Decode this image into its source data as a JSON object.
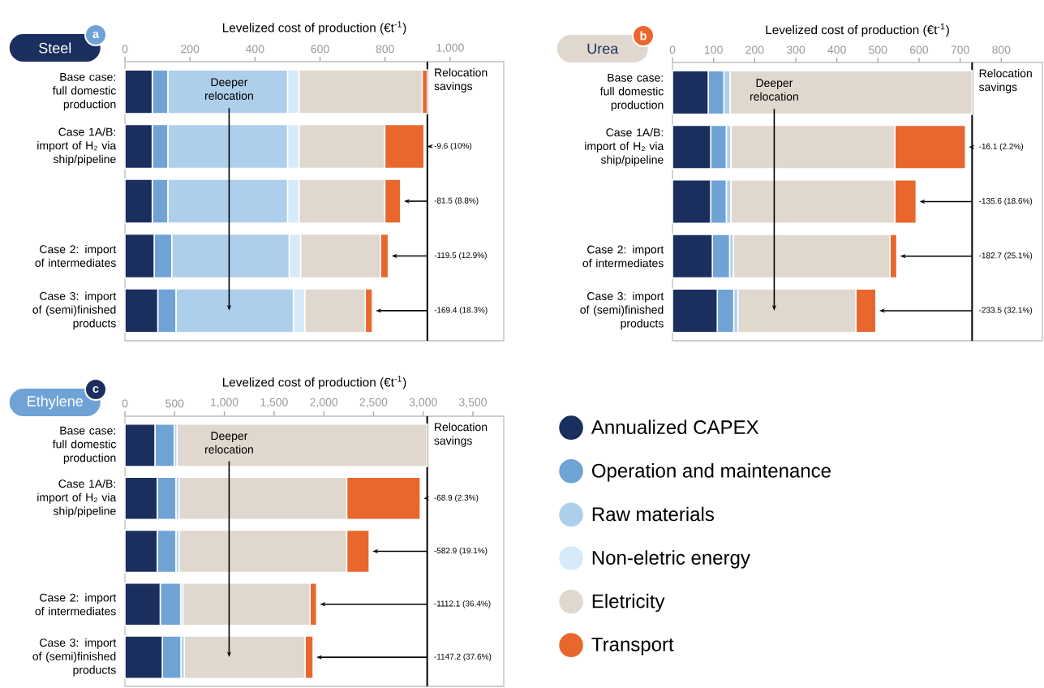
{
  "chart_data": [
    {
      "type": "bar",
      "orientation": "horizontal",
      "stacked": true,
      "title": "Steel",
      "subtitle": "a",
      "xlabel": "Levelized cost of production (€t$^{-1}$)",
      "categories": [
        "Base case: full domestic production",
        "Case 1A/B: import of H₂ via ship/pipeline",
        null,
        "Case 2: import of intermediates",
        "Case 3: import of (semi)finished products"
      ],
      "series": [
        {
          "name": "Annualized CAPEX",
          "color": "#1b2f5e",
          "values": [
            84,
            84,
            84,
            90,
            101
          ]
        },
        {
          "name": "Operation and maintenance",
          "color": "#6fa3d6",
          "values": [
            48,
            48,
            48,
            54,
            56
          ]
        },
        {
          "name": "Raw materials",
          "color": "#aecfec",
          "values": [
            368,
            368,
            368,
            361,
            361
          ]
        },
        {
          "name": "Non-eletric energy",
          "color": "#d6eafa",
          "values": [
            35,
            35,
            35,
            35,
            35
          ]
        },
        {
          "name": "Eletricity",
          "color": "#e0d8ce",
          "values": [
            379,
            264,
            264,
            246,
            186
          ]
        },
        {
          "name": "Transport",
          "color": "#e9672d",
          "values": [
            16,
            121,
            49,
            24,
            22
          ]
        }
      ],
      "xlim": [
        0,
        1165
      ],
      "xticks": [
        0,
        200,
        400,
        600,
        800,
        {
          "value": 1000,
          "label": "1,000"
        }
      ],
      "ref_lines": [
        {
          "axis": "x",
          "value": 930,
          "label": "Relocation savings",
          "color": "#000000"
        }
      ],
      "annotations": [
        "Deeper relocation",
        "-9.6 (10%)",
        "-81.5 (8.8%)",
        "-119.5 (12.9%)",
        "-169.4 (18.3%)"
      ],
      "legend": "bottom right"
    },
    {
      "type": "bar",
      "orientation": "horizontal",
      "stacked": true,
      "title": "Urea",
      "subtitle": "b",
      "xlabel": "Levelized cost of production (€t$^{-1}$)",
      "categories": [
        "Base case: full domestic production",
        "Case 1A/B: import of H₂ via ship/pipeline",
        null,
        "Case 2: import of intermediates",
        "Case 3: import of (semi)finished products"
      ],
      "series": [
        {
          "color": "#1b2f5e",
          "values": [
            87,
            93,
            93,
            97,
            109
          ]
        },
        {
          "color": "#6fa3d6",
          "values": [
            38,
            38,
            38,
            42,
            40
          ]
        },
        {
          "color": "#aecfec",
          "values": [
            15,
            11,
            11,
            9,
            10
          ]
        },
        {
          "color": "#e0d8ce",
          "values": [
            589,
            399,
            399,
            381,
            287
          ]
        },
        {
          "color": "#e9672d",
          "values": [
            null,
            172,
            52,
            17,
            49
          ]
        }
      ],
      "xlim": [
        0,
        900
      ],
      "xticks": [
        0,
        100,
        200,
        300,
        400,
        500,
        600,
        700,
        800
      ],
      "ref_lines": [
        {
          "axis": "x",
          "value": 729,
          "label": "Relocation savings",
          "color": "#000000"
        }
      ],
      "annotations": [
        "Deeper relocation",
        "-16.1 (2.2%)",
        "-135.6 (18.6%)",
        "-182.7 (25.1%)",
        "-233.5 (32.1%)"
      ]
    },
    {
      "type": "bar",
      "orientation": "horizontal",
      "stacked": true,
      "title": "Ethylene",
      "subtitle": "c",
      "xlabel": "Levelized cost of production (€t$^{-1}$)",
      "categories": [
        "Base case: full domestic production",
        "Case 1A/B: import of H₂ via ship/pipeline",
        null,
        "Case 2: import of intermediates",
        "Case 3: import of (semi)finished products"
      ],
      "series": [
        {
          "color": "#1b2f5e",
          "values": [
            302,
            325,
            325,
            355,
            376
          ]
        },
        {
          "color": "#6fa3d6",
          "values": [
            194,
            188,
            188,
            205,
            187
          ]
        },
        {
          "color": "#aecfec",
          "values": [
            27,
            30,
            30,
            23,
            34
          ]
        },
        {
          "color": "#e0d8ce",
          "values": [
            2517,
            1687,
            1687,
            1278,
            1214
          ]
        },
        {
          "color": "#e9672d",
          "values": [
            null,
            741,
            227,
            67,
            82
          ]
        }
      ],
      "xlim": [
        0,
        3810
      ],
      "xticks": [
        0,
        500,
        {
          "value": 1000,
          "label": "1,000"
        },
        {
          "value": 1500,
          "label": "1,500"
        },
        {
          "value": 2000,
          "label": "2,000"
        },
        {
          "value": 2500,
          "label": "2,500"
        },
        {
          "value": 3000,
          "label": "3,000"
        },
        {
          "value": 3500,
          "label": "3,500"
        }
      ],
      "ref_lines": [
        {
          "axis": "x",
          "value": 3040,
          "label": "Relocation savings",
          "color": "#000000"
        }
      ],
      "annotations": [
        "Deeper relocation",
        "-68.9 (2.3%)",
        "-582.9 (19.1%)",
        "-1112.1 (36.4%)",
        "-1147.2 (37.6%)"
      ]
    }
  ]
}
